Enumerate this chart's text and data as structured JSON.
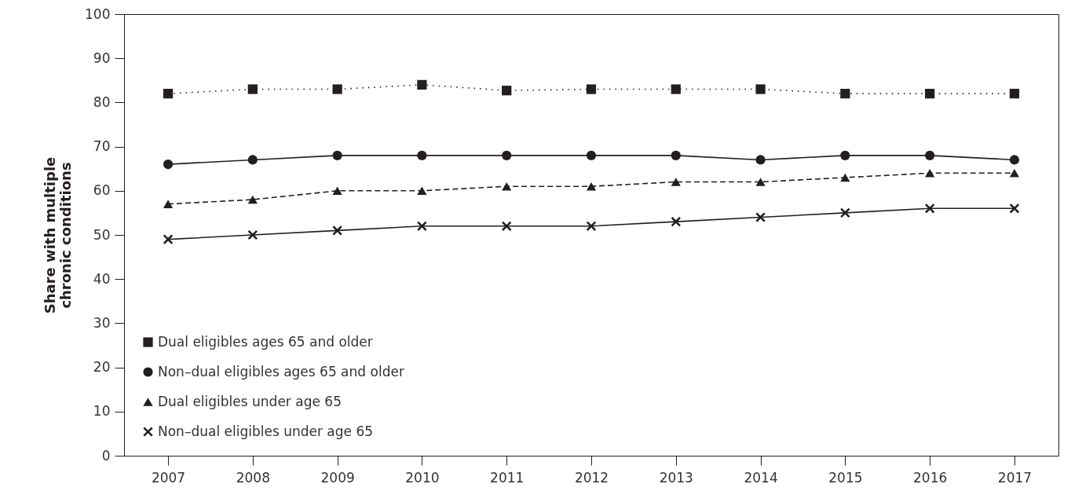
{
  "chart_data": {
    "type": "line",
    "ylabel": "Share with multiple\nchronic conditions",
    "categories": [
      "2007",
      "2008",
      "2009",
      "2010",
      "2011",
      "2012",
      "2013",
      "2014",
      "2015",
      "2016",
      "2017"
    ],
    "ylim": [
      0,
      100
    ],
    "yticks": [
      0,
      10,
      20,
      30,
      40,
      50,
      60,
      70,
      80,
      90,
      100
    ],
    "legend": "bottom left",
    "series": [
      {
        "name": "Dual eligibles ages 65 and older",
        "color": "#231f20",
        "marker": "square",
        "line_style": "dotted",
        "values": [
          82,
          83,
          83,
          84,
          82.7,
          83,
          83,
          83,
          82,
          82,
          82
        ]
      },
      {
        "name": "Non–dual eligibles ages 65 and older",
        "color": "#231f20",
        "marker": "circle",
        "line_style": "solid",
        "values": [
          66,
          67,
          68,
          68,
          68,
          68,
          68,
          67,
          68,
          68,
          67
        ]
      },
      {
        "name": "Dual eligibles under age 65",
        "color": "#231f20",
        "marker": "triangle",
        "line_style": "dashed",
        "values": [
          57,
          58,
          60,
          60,
          61,
          61,
          62,
          62,
          63,
          64,
          64
        ]
      },
      {
        "name": "Non–dual eligibles under age 65",
        "color": "#231f20",
        "marker": "cross",
        "line_style": "solid",
        "values": [
          49,
          50,
          51,
          52,
          52,
          52,
          53,
          54,
          55,
          56,
          56
        ]
      }
    ]
  }
}
